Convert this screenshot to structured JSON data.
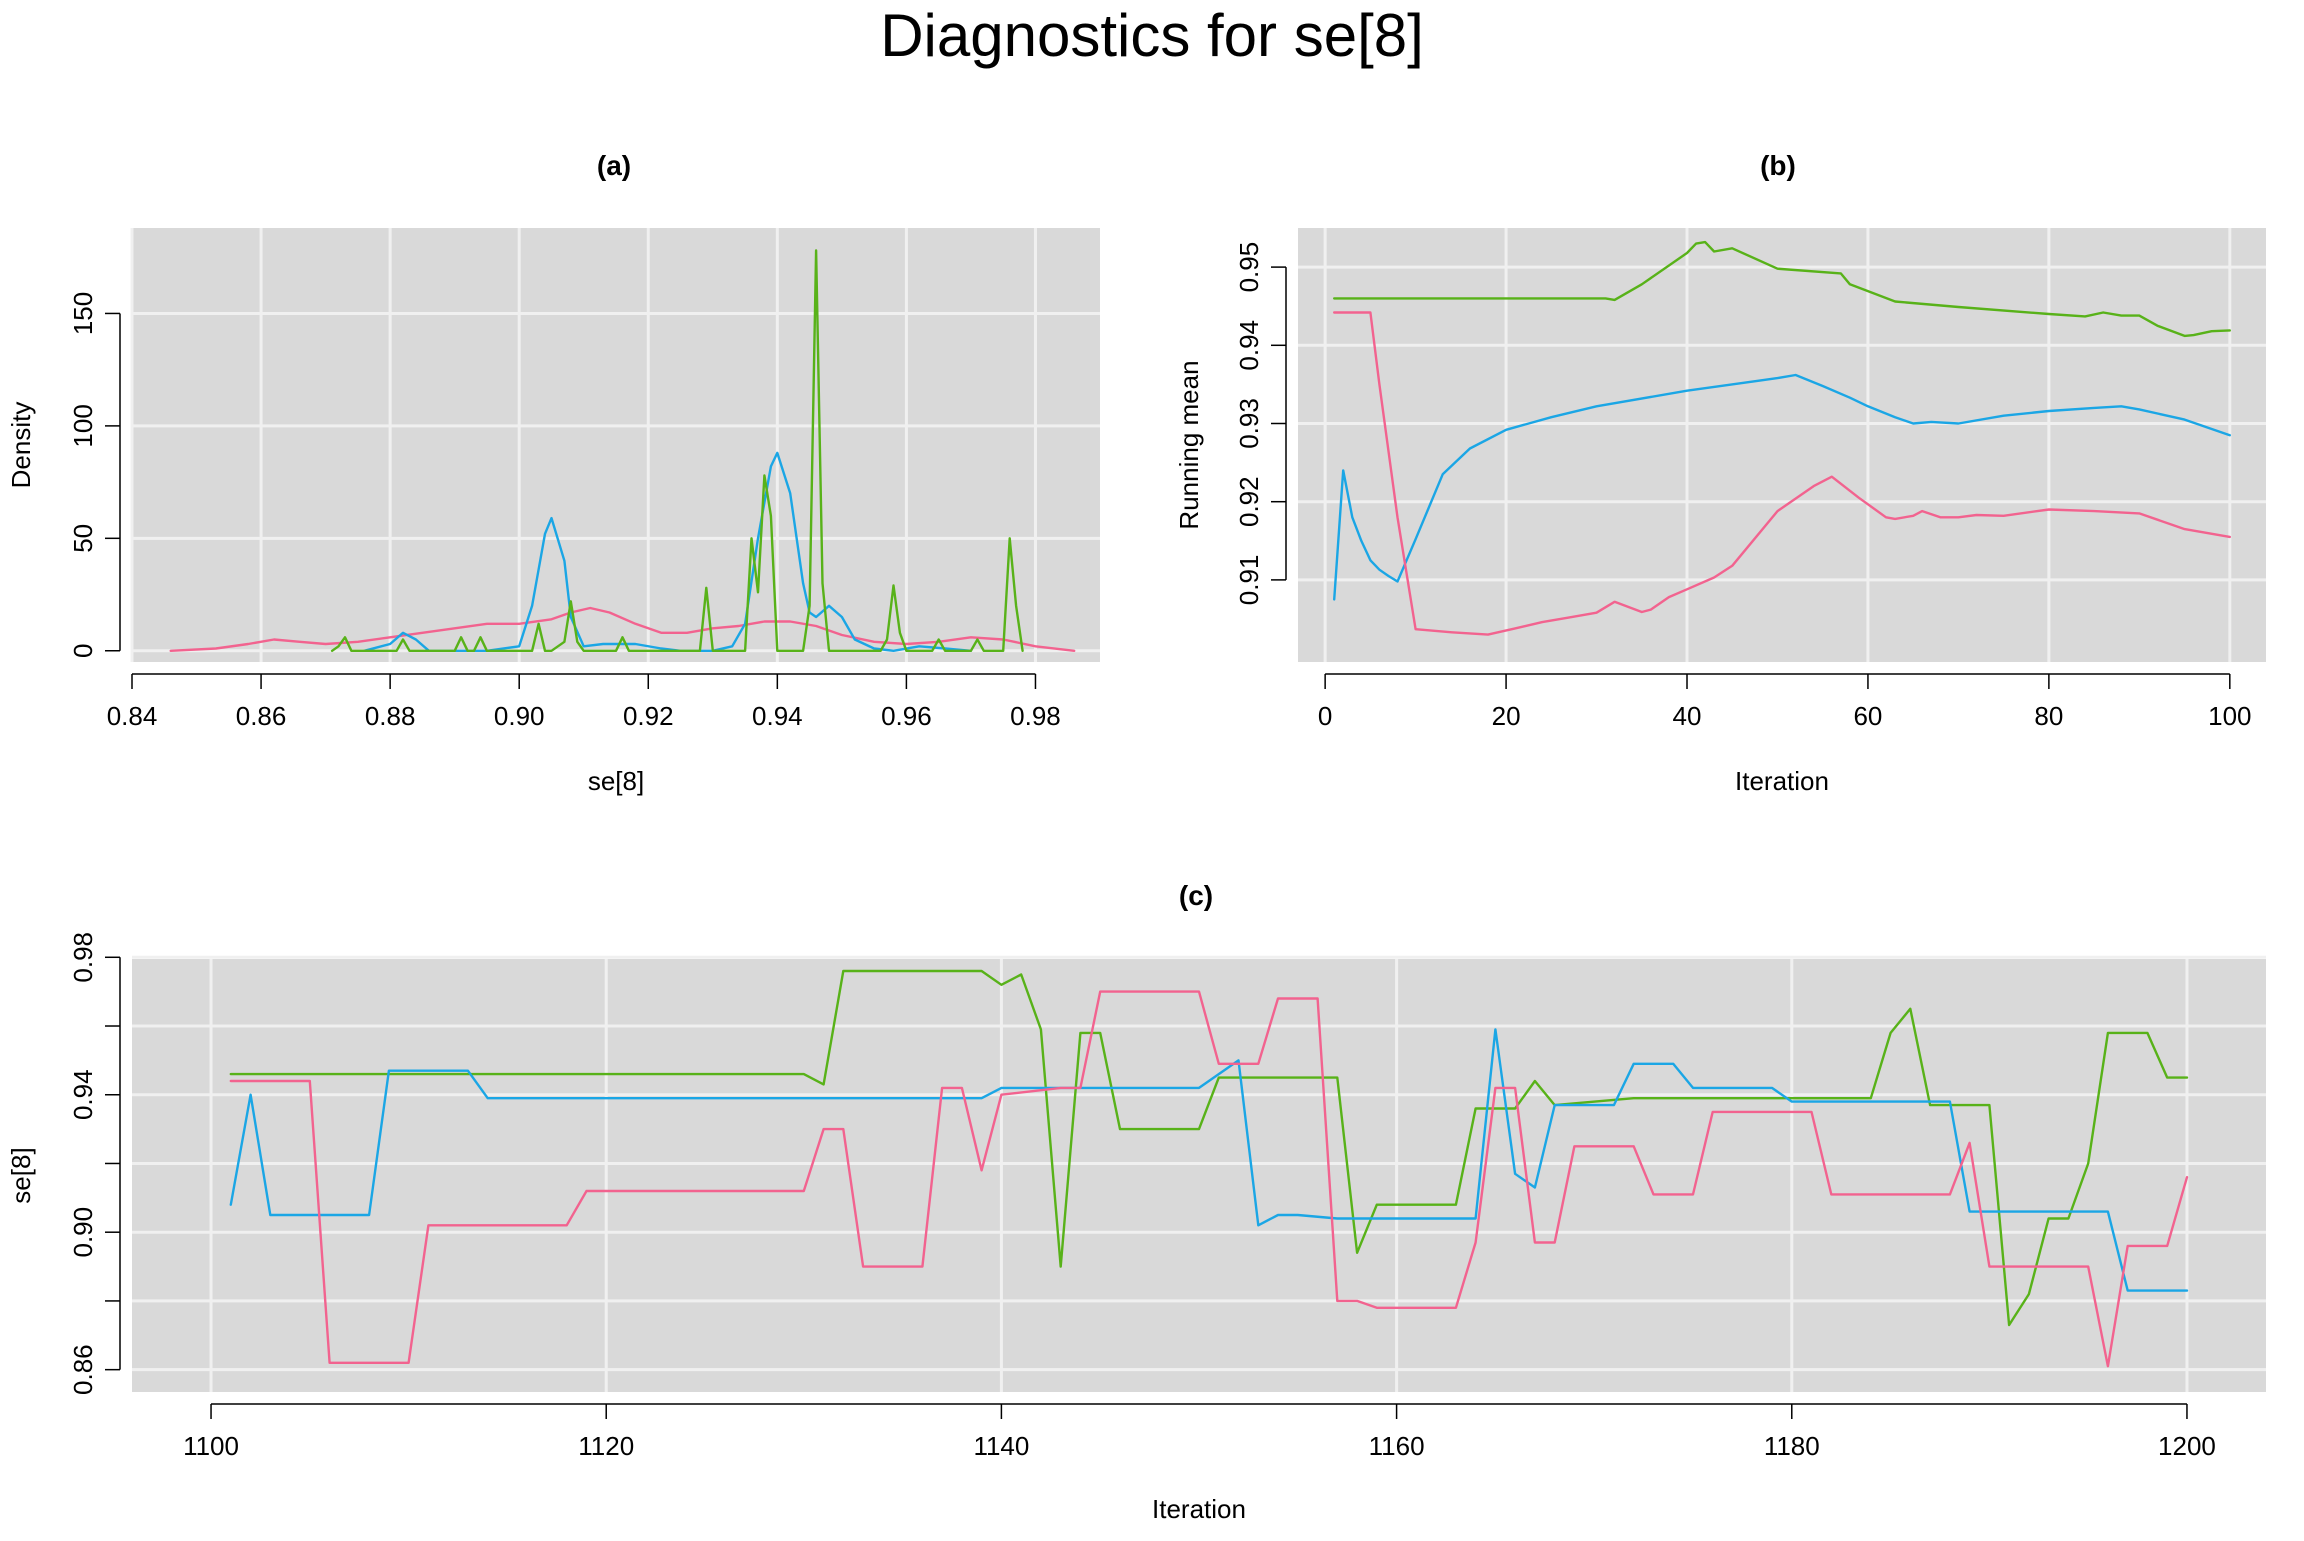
{
  "title": "Diagnostics for se[8]",
  "chart_data": [
    {
      "panel": "(a)",
      "type": "line",
      "xlabel": "se[8]",
      "ylabel": "Density",
      "xlim": [
        0.84,
        0.99
      ],
      "ylim": [
        -5,
        188
      ],
      "xticks": [
        0.84,
        0.86,
        0.88,
        0.9,
        0.92,
        0.94,
        0.96,
        0.98
      ],
      "xtick_labels": [
        "0.84",
        "0.86",
        "0.88",
        "0.90",
        "0.92",
        "0.94",
        "0.96",
        "0.98"
      ],
      "yticks": [
        0,
        50,
        100,
        150
      ],
      "ytick_labels": [
        "0",
        "50",
        "100",
        "150"
      ],
      "grid": true,
      "series": [
        {
          "color": "#f2638f",
          "x": [
            0.846,
            0.853,
            0.858,
            0.862,
            0.866,
            0.87,
            0.875,
            0.88,
            0.885,
            0.89,
            0.895,
            0.9,
            0.905,
            0.908,
            0.911,
            0.914,
            0.918,
            0.922,
            0.926,
            0.93,
            0.934,
            0.938,
            0.942,
            0.946,
            0.95,
            0.955,
            0.96,
            0.965,
            0.97,
            0.975,
            0.98,
            0.986
          ],
          "y": [
            0,
            1,
            3,
            5,
            4,
            3,
            4,
            6,
            8,
            10,
            12,
            12,
            14,
            17,
            19,
            17,
            12,
            8,
            8,
            10,
            11,
            13,
            13,
            11,
            7,
            4,
            3,
            4,
            6,
            5,
            2,
            0
          ]
        },
        {
          "color": "#1ba6e5",
          "x": [
            0.876,
            0.88,
            0.882,
            0.884,
            0.886,
            0.89,
            0.895,
            0.9,
            0.902,
            0.904,
            0.905,
            0.907,
            0.908,
            0.91,
            0.913,
            0.918,
            0.922,
            0.925,
            0.93,
            0.933,
            0.935,
            0.937,
            0.939,
            0.94,
            0.942,
            0.944,
            0.945,
            0.946,
            0.948,
            0.95,
            0.952,
            0.955,
            0.958,
            0.962,
            0.966,
            0.97
          ],
          "y": [
            0,
            3,
            8,
            5,
            0,
            0,
            0,
            2,
            20,
            52,
            59,
            40,
            15,
            2,
            3,
            3,
            1,
            0,
            0,
            2,
            12,
            50,
            82,
            88,
            70,
            30,
            17,
            15,
            20,
            15,
            5,
            1,
            0,
            2,
            1,
            0
          ]
        },
        {
          "color": "#58b219",
          "x": [
            0.871,
            0.872,
            0.873,
            0.874,
            0.877,
            0.881,
            0.882,
            0.883,
            0.886,
            0.89,
            0.891,
            0.892,
            0.893,
            0.894,
            0.895,
            0.896,
            0.902,
            0.903,
            0.904,
            0.905,
            0.907,
            0.908,
            0.909,
            0.91,
            0.915,
            0.916,
            0.917,
            0.918,
            0.928,
            0.929,
            0.93,
            0.931,
            0.935,
            0.936,
            0.937,
            0.938,
            0.939,
            0.94,
            0.941,
            0.944,
            0.945,
            0.946,
            0.947,
            0.948,
            0.956,
            0.957,
            0.958,
            0.959,
            0.96,
            0.964,
            0.965,
            0.966,
            0.967,
            0.97,
            0.971,
            0.972,
            0.975,
            0.976,
            0.977,
            0.978
          ],
          "y": [
            0,
            2,
            6,
            0,
            0,
            0,
            5,
            0,
            0,
            0,
            6,
            0,
            0,
            6,
            0,
            0,
            0,
            12,
            0,
            0,
            4,
            22,
            4,
            0,
            0,
            6,
            0,
            0,
            0,
            28,
            0,
            0,
            0,
            50,
            26,
            78,
            60,
            0,
            0,
            0,
            20,
            178,
            30,
            0,
            0,
            5,
            29,
            8,
            0,
            0,
            5,
            0,
            0,
            0,
            5,
            0,
            0,
            50,
            20,
            0
          ]
        }
      ]
    },
    {
      "panel": "(b)",
      "type": "line",
      "xlabel": "Iteration",
      "ylabel": "Running mean",
      "xlim": [
        -3,
        104
      ],
      "ylim": [
        0.8995,
        0.955
      ],
      "xticks": [
        0,
        20,
        40,
        60,
        80,
        100
      ],
      "xtick_labels": [
        "0",
        "20",
        "40",
        "60",
        "80",
        "100"
      ],
      "yticks": [
        0.91,
        0.92,
        0.93,
        0.94,
        0.95
      ],
      "ytick_labels": [
        "0.91",
        "0.92",
        "0.93",
        "0.94",
        "0.95"
      ],
      "grid": true,
      "series": [
        {
          "color": "#58b219",
          "x": [
            1,
            5,
            10,
            20,
            31,
            32,
            35,
            40,
            41,
            42,
            43,
            45,
            50,
            57,
            58,
            63,
            70,
            80,
            84,
            86,
            88,
            90,
            92,
            95,
            96,
            98,
            100
          ],
          "y": [
            0.946,
            0.946,
            0.946,
            0.946,
            0.946,
            0.9458,
            0.9478,
            0.9518,
            0.953,
            0.9532,
            0.952,
            0.9524,
            0.9498,
            0.9492,
            0.9478,
            0.9456,
            0.9449,
            0.944,
            0.9437,
            0.9442,
            0.9438,
            0.9438,
            0.9425,
            0.9412,
            0.9413,
            0.9418,
            0.9419
          ]
        },
        {
          "color": "#1ba6e5",
          "x": [
            1,
            2,
            3,
            4,
            5,
            6,
            7,
            8,
            10,
            13,
            16,
            20,
            25,
            30,
            40,
            50,
            52,
            55,
            58,
            60,
            63,
            65,
            67,
            70,
            75,
            80,
            85,
            88,
            90,
            95,
            100
          ],
          "y": [
            0.9075,
            0.924,
            0.918,
            0.915,
            0.9125,
            0.9113,
            0.9105,
            0.9098,
            0.9152,
            0.9235,
            0.9268,
            0.9292,
            0.9308,
            0.9322,
            0.9342,
            0.9358,
            0.9362,
            0.9348,
            0.9333,
            0.9322,
            0.9308,
            0.93,
            0.9302,
            0.93,
            0.931,
            0.9316,
            0.932,
            0.9322,
            0.9318,
            0.9305,
            0.9285
          ]
        },
        {
          "color": "#f2638f",
          "x": [
            1,
            5,
            6,
            8,
            10,
            14,
            18,
            21,
            24,
            27,
            30,
            32,
            35,
            36,
            38,
            40,
            43,
            45,
            50,
            54,
            56,
            59,
            62,
            63,
            65,
            66,
            68,
            70,
            72,
            75,
            80,
            85,
            90,
            95,
            100
          ],
          "y": [
            0.9442,
            0.9442,
            0.935,
            0.918,
            0.9037,
            0.9033,
            0.903,
            0.9038,
            0.9046,
            0.9052,
            0.9058,
            0.9072,
            0.9059,
            0.9062,
            0.9078,
            0.9088,
            0.9103,
            0.9118,
            0.9188,
            0.922,
            0.9232,
            0.9205,
            0.918,
            0.9178,
            0.9182,
            0.9188,
            0.918,
            0.918,
            0.9183,
            0.9182,
            0.919,
            0.9188,
            0.9185,
            0.9165,
            0.9155
          ]
        }
      ]
    },
    {
      "panel": "(c)",
      "type": "line",
      "xlabel": "Iteration",
      "ylabel": "se[8]",
      "xlim": [
        1096,
        1204
      ],
      "ylim": [
        0.8535,
        0.9795
      ],
      "xticks": [
        1100,
        1120,
        1140,
        1160,
        1180,
        1200
      ],
      "xtick_labels": [
        "1100",
        "1120",
        "1140",
        "1160",
        "1180",
        "1200"
      ],
      "yticks": [
        0.86,
        0.88,
        0.9,
        0.92,
        0.94,
        0.96,
        0.98
      ],
      "ytick_labels": [
        "0.86",
        "",
        "0.90",
        "",
        "0.94",
        "",
        "0.98"
      ],
      "grid": true,
      "series": [
        {
          "color": "#58b219",
          "x": [
            1101,
            1130,
            1131,
            1132,
            1139,
            1140,
            1141,
            1142,
            1143,
            1144,
            1145,
            1146,
            1150,
            1151,
            1157,
            1158,
            1159,
            1163,
            1164,
            1166,
            1167,
            1168,
            1172,
            1184,
            1185,
            1186,
            1187,
            1190,
            1191,
            1192,
            1193,
            1194,
            1195,
            1196,
            1198,
            1199,
            1200
          ],
          "y": [
            0.946,
            0.946,
            0.943,
            0.976,
            0.976,
            0.972,
            0.975,
            0.959,
            0.89,
            0.958,
            0.958,
            0.93,
            0.93,
            0.945,
            0.945,
            0.894,
            0.908,
            0.908,
            0.936,
            0.936,
            0.944,
            0.937,
            0.939,
            0.939,
            0.958,
            0.965,
            0.937,
            0.937,
            0.873,
            0.882,
            0.904,
            0.904,
            0.92,
            0.958,
            0.958,
            0.945,
            0.945
          ]
        },
        {
          "color": "#1ba6e5",
          "x": [
            1101,
            1102,
            1103,
            1108,
            1109,
            1113,
            1114,
            1139,
            1140,
            1150,
            1152,
            1153,
            1154,
            1155,
            1157,
            1164,
            1165,
            1166,
            1167,
            1168,
            1171,
            1172,
            1174,
            1175,
            1179,
            1180,
            1188,
            1189,
            1196,
            1197,
            1200
          ],
          "y": [
            0.908,
            0.94,
            0.905,
            0.905,
            0.947,
            0.947,
            0.939,
            0.939,
            0.942,
            0.942,
            0.95,
            0.902,
            0.905,
            0.905,
            0.904,
            0.904,
            0.959,
            0.917,
            0.913,
            0.937,
            0.937,
            0.949,
            0.949,
            0.942,
            0.942,
            0.938,
            0.938,
            0.906,
            0.906,
            0.883,
            0.883
          ]
        },
        {
          "color": "#f2638f",
          "x": [
            1101,
            1105,
            1106,
            1110,
            1111,
            1118,
            1119,
            1130,
            1131,
            1132,
            1133,
            1136,
            1137,
            1138,
            1139,
            1140,
            1143,
            1144,
            1145,
            1150,
            1151,
            1153,
            1154,
            1156,
            1157,
            1158,
            1159,
            1163,
            1164,
            1165,
            1166,
            1167,
            1168,
            1169,
            1172,
            1173,
            1175,
            1176,
            1181,
            1182,
            1188,
            1189,
            1190,
            1195,
            1196,
            1197,
            1199,
            1200
          ],
          "y": [
            0.944,
            0.944,
            0.862,
            0.862,
            0.902,
            0.902,
            0.912,
            0.912,
            0.93,
            0.93,
            0.89,
            0.89,
            0.942,
            0.942,
            0.918,
            0.94,
            0.942,
            0.942,
            0.97,
            0.97,
            0.949,
            0.949,
            0.968,
            0.968,
            0.88,
            0.88,
            0.878,
            0.878,
            0.897,
            0.942,
            0.942,
            0.897,
            0.897,
            0.925,
            0.925,
            0.911,
            0.911,
            0.935,
            0.935,
            0.911,
            0.911,
            0.926,
            0.89,
            0.89,
            0.861,
            0.896,
            0.896,
            0.916
          ]
        }
      ]
    }
  ]
}
